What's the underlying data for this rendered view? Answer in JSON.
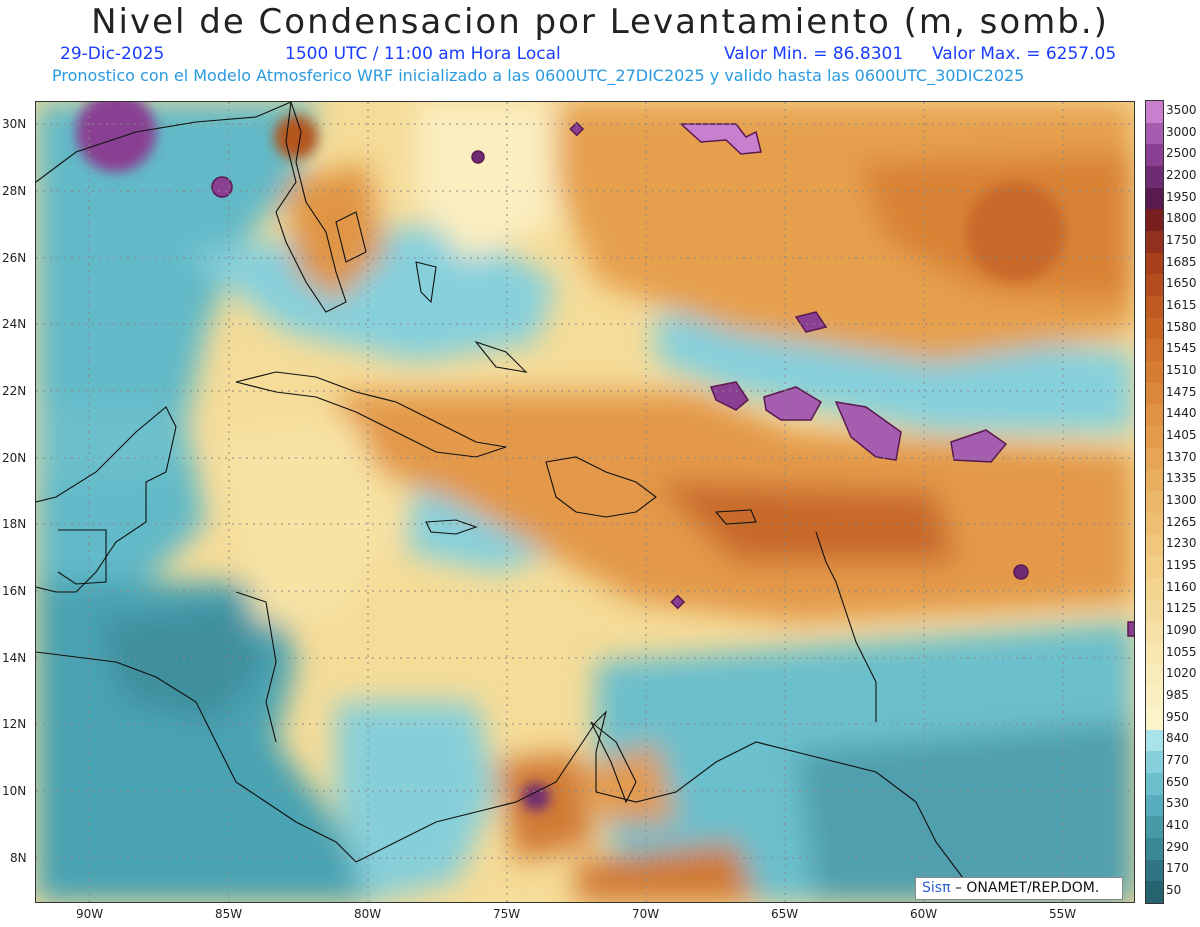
{
  "title": "Nivel de Condensacion por Levantamiento (m, somb.)",
  "date": "29-Dic-2025",
  "time": "1500 UTC / 11:00 am Hora Local",
  "valmin": "Valor Min. = 86.8301",
  "valmax": "Valor Max. = 6257.05",
  "forecast": "Pronostico con el Modelo Atmosferico WRF inicializado a las 0600UTC_27DIC2025 y valido hasta las  0600UTC_30DIC2025",
  "lat_labels": [
    "30N",
    "28N",
    "26N",
    "24N",
    "22N",
    "20N",
    "18N",
    "16N",
    "14N",
    "12N",
    "10N",
    "8N"
  ],
  "lon_labels": [
    "90W",
    "85W",
    "80W",
    "75W",
    "70W",
    "65W",
    "60W",
    "55W"
  ],
  "colorbar": {
    "labels": [
      "3500",
      "3000",
      "2500",
      "2200",
      "1950",
      "1800",
      "1750",
      "1685",
      "1650",
      "1615",
      "1580",
      "1545",
      "1510",
      "1475",
      "1440",
      "1405",
      "1370",
      "1335",
      "1300",
      "1265",
      "1230",
      "1195",
      "1160",
      "1125",
      "1090",
      "1055",
      "1020",
      "985",
      "950",
      "840",
      "770",
      "650",
      "530",
      "410",
      "290",
      "170",
      "50"
    ],
    "colors": [
      "#c77fce",
      "#a55db0",
      "#8a3f92",
      "#6e2c73",
      "#5a1a4f",
      "#7a1f1f",
      "#94301f",
      "#a83f1d",
      "#b34c1f",
      "#bf5a22",
      "#c86626",
      "#d0722c",
      "#d67d33",
      "#db883a",
      "#df9242",
      "#e39c4c",
      "#e6a555",
      "#e9ae5f",
      "#ebb768",
      "#eebf72",
      "#f0c77c",
      "#f2ce86",
      "#f4d590",
      "#f5db9b",
      "#f7e1a6",
      "#f8e7b1",
      "#f9ecbb",
      "#faf0c3",
      "#fbf3c9",
      "#a9e3ea",
      "#86d0dc",
      "#6cbfcc",
      "#57adbb",
      "#479aa8",
      "#3a8795",
      "#2f7482",
      "#25636f"
    ]
  },
  "credit": {
    "brand": "Sisπ",
    "text": "– ONAMET/REP.DOM."
  }
}
